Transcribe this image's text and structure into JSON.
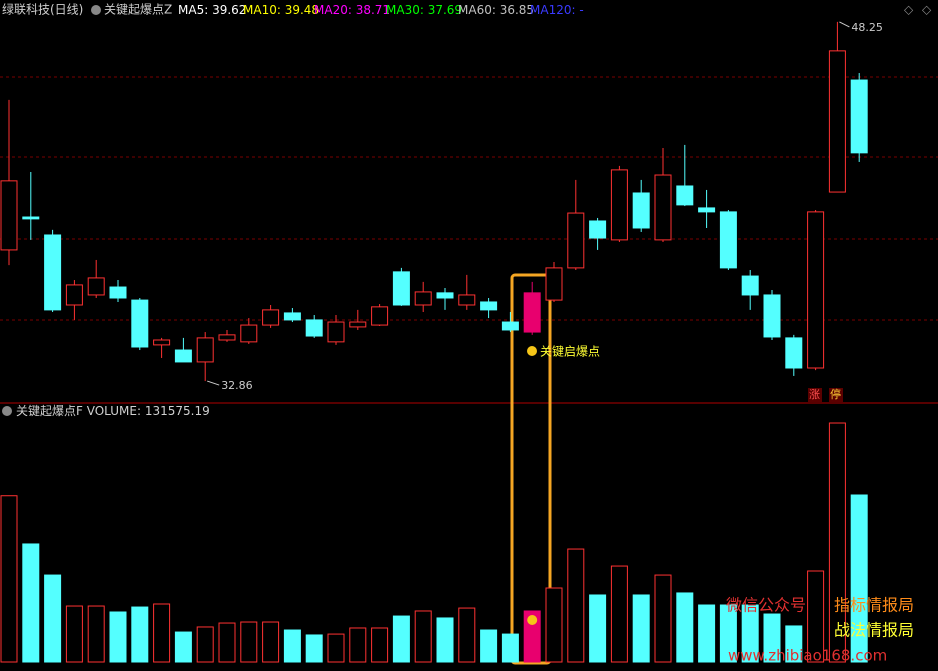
{
  "title": "绿联科技(日线)",
  "indicator": "关键起爆点Z",
  "ma": [
    {
      "label": "MA5:",
      "value": 39.62,
      "color": "#ffffff"
    },
    {
      "label": "MA10:",
      "value": 39.48,
      "color": "#ffff00"
    },
    {
      "label": "MA20:",
      "value": 38.71,
      "color": "#ff00ff"
    },
    {
      "label": "MA30:",
      "value": 37.69,
      "color": "#00ff00"
    },
    {
      "label": "MA60:",
      "value": 36.85,
      "color": "#c0c0c0"
    },
    {
      "label": "MA120:",
      "value": "-",
      "color": "#3a3aff"
    }
  ],
  "annotation": "关键启爆点",
  "limit_up": [
    "涨",
    "停"
  ],
  "watermark": {
    "left": "微信公众号",
    "right_top": "指标情报局",
    "right_bottom": "战法情报局",
    "url": "www.zhibiao168.com"
  },
  "chart_data": [
    {
      "type": "candlestick",
      "up_color": "#ff3232",
      "down_color": "#54ffff",
      "highlight_color": "#e8006e",
      "highlight_index": 24,
      "ylim": [
        31.92,
        49.19
      ],
      "open": [
        38.48,
        39.89,
        39.12,
        36.12,
        36.55,
        36.89,
        36.33,
        34.41,
        34.19,
        33.68,
        34.62,
        34.54,
        35.26,
        35.78,
        35.48,
        34.54,
        35.18,
        35.26,
        37.54,
        36.12,
        36.64,
        36.12,
        36.25,
        35.39,
        34.96,
        36.33,
        37.71,
        39.72,
        38.91,
        40.92,
        38.91,
        41.22,
        40.28,
        40.11,
        37.36,
        36.55,
        34.71,
        33.42,
        40.96,
        45.76
      ],
      "close": [
        41.44,
        39.81,
        35.91,
        36.98,
        37.28,
        36.42,
        34.32,
        34.62,
        33.68,
        34.71,
        34.84,
        35.26,
        35.91,
        35.48,
        34.79,
        35.39,
        35.39,
        36.04,
        36.12,
        36.68,
        36.42,
        36.55,
        35.91,
        35.05,
        36.64,
        37.71,
        40.06,
        38.99,
        41.91,
        39.42,
        41.69,
        40.41,
        40.11,
        37.71,
        36.55,
        34.75,
        33.42,
        40.11,
        47.01,
        42.64
      ],
      "high": [
        44.91,
        41.82,
        39.34,
        37.19,
        38.05,
        37.19,
        36.42,
        34.71,
        34.71,
        34.96,
        35.05,
        35.56,
        36.12,
        35.99,
        35.69,
        35.69,
        35.91,
        36.16,
        37.71,
        37.11,
        36.85,
        37.41,
        36.42,
        35.82,
        37.11,
        37.96,
        41.48,
        39.85,
        42.08,
        41.48,
        42.85,
        42.98,
        41.05,
        40.19,
        37.62,
        36.76,
        34.84,
        40.19,
        48.25,
        46.06
      ],
      "low": [
        37.83,
        38.91,
        35.82,
        35.48,
        36.42,
        36.25,
        34.19,
        33.85,
        33.68,
        32.86,
        34.54,
        34.45,
        35.14,
        35.39,
        34.71,
        34.41,
        35.05,
        35.22,
        36.08,
        35.82,
        35.91,
        35.91,
        35.56,
        34.96,
        34.84,
        36.25,
        37.62,
        38.48,
        38.82,
        39.25,
        38.82,
        40.36,
        39.42,
        37.62,
        35.91,
        34.62,
        33.08,
        33.33,
        40.96,
        42.25
      ]
    },
    {
      "type": "bar",
      "title": "关键起爆点F",
      "value_label": "VOLUME:",
      "ylim": [
        0,
        190670
      ],
      "values": [
        131000,
        93000,
        68500,
        44100,
        44100,
        39400,
        43300,
        45700,
        23600,
        27600,
        30700,
        31500,
        31500,
        25200,
        21300,
        22000,
        26800,
        26800,
        36200,
        40200,
        34700,
        42500,
        25200,
        22000,
        40200,
        58300,
        89000,
        52800,
        75600,
        52800,
        68500,
        54400,
        44900,
        44900,
        44900,
        37800,
        28400,
        71700,
        188300,
        131575.19
      ]
    }
  ]
}
